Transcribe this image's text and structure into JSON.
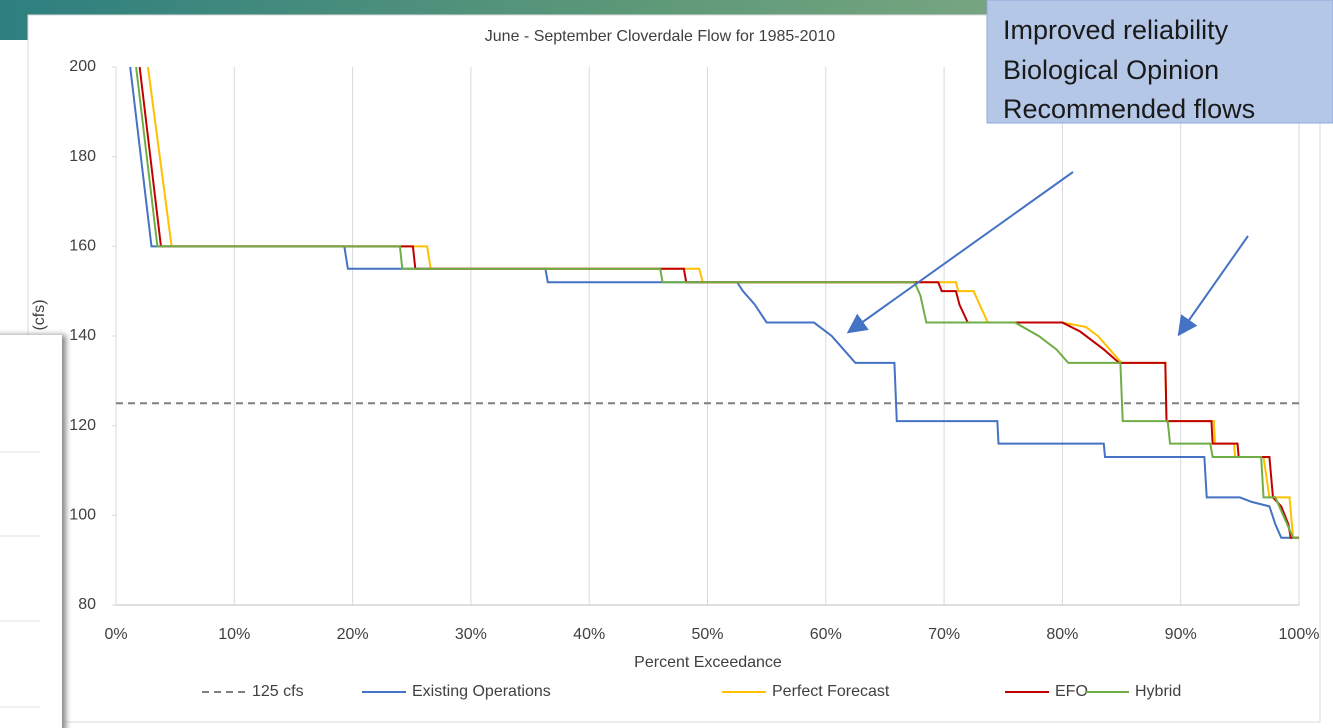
{
  "chart_data": {
    "type": "line",
    "title": "June - September Cloverdale Flow for 1985-2010",
    "y_label": "(cfs)",
    "x_label": "Percent Exceedance",
    "annotations": [
      "Improved reliability",
      "Biological Opinion",
      "Recommended flows"
    ],
    "xlim": [
      0,
      100
    ],
    "xticks": [
      {
        "value": 0,
        "label": "0%"
      },
      {
        "value": 10,
        "label": "10%"
      },
      {
        "value": 20,
        "label": "20%"
      },
      {
        "value": 30,
        "label": "30%"
      },
      {
        "value": 40,
        "label": "40%"
      },
      {
        "value": 50,
        "label": "50%"
      },
      {
        "value": 60,
        "label": "60%"
      },
      {
        "value": 70,
        "label": "70%"
      },
      {
        "value": 80,
        "label": "80%"
      },
      {
        "value": 90,
        "label": "90%"
      },
      {
        "value": 100,
        "label": "100%"
      }
    ],
    "ylim": [
      80,
      200
    ],
    "yticks": [
      80,
      100,
      120,
      140,
      160,
      180,
      200
    ],
    "grid": "x",
    "series": [
      {
        "name": "125 cfs",
        "color": "#7f7f7f",
        "dashed": true,
        "x": [
          0,
          100
        ],
        "values": [
          125,
          125
        ]
      },
      {
        "name": "Existing Operations",
        "color": "#4472c4",
        "dashed": false,
        "x": [
          1.2,
          3.0,
          19.3,
          19.6,
          36.3,
          36.5,
          52.5,
          53,
          54,
          55,
          59,
          60.5,
          61.5,
          62.5,
          65.8,
          66,
          74.5,
          74.6,
          83.5,
          83.6,
          92,
          92.2,
          95,
          96,
          97.5,
          98,
          98.5,
          100
        ],
        "values": [
          200,
          160,
          160,
          155,
          155,
          152,
          152,
          150,
          147,
          143,
          143,
          140,
          137,
          134,
          134,
          121,
          121,
          116,
          116,
          113,
          113,
          104,
          104,
          103,
          102,
          98,
          95,
          95
        ]
      },
      {
        "name": "Perfect Forecast",
        "color": "#ffc000",
        "dashed": false,
        "x": [
          2.7,
          4.7,
          26.3,
          26.6,
          49.3,
          49.6,
          71,
          71.2,
          72.5,
          73,
          73.7,
          80,
          82,
          83,
          84,
          85,
          88.7,
          88.8,
          92.8,
          92.9,
          94.5,
          94.6,
          97,
          97.5,
          99.2,
          99.5,
          100
        ],
        "values": [
          200,
          160,
          160,
          155,
          155,
          152,
          152,
          150,
          150,
          147,
          143,
          143,
          142,
          140,
          137,
          134,
          134,
          121,
          121,
          116,
          116,
          113,
          113,
          104,
          104,
          95,
          95
        ]
      },
      {
        "name": "EFO",
        "color": "#c00000",
        "dashed": false,
        "x": [
          2.0,
          3.8,
          25.1,
          25.3,
          48,
          48.2,
          69.5,
          69.8,
          71,
          71.3,
          72,
          80,
          81.5,
          83.5,
          84.8,
          88.7,
          88.8,
          92.6,
          92.7,
          94.8,
          94.9,
          97.5,
          97.8,
          98.5,
          99.1,
          99.3,
          100
        ],
        "values": [
          200,
          160,
          160,
          155,
          155,
          152,
          152,
          150,
          150,
          147,
          143,
          143,
          141,
          137,
          134,
          134,
          121,
          121,
          116,
          116,
          113,
          113,
          104,
          102,
          98,
          95,
          95
        ]
      },
      {
        "name": "Hybrid",
        "color": "#70ad47",
        "dashed": false,
        "x": [
          1.7,
          3.5,
          24,
          24.2,
          46,
          46.2,
          67.5,
          68,
          68.5,
          76,
          78,
          79.5,
          80.5,
          84.9,
          85.1,
          88.9,
          89.1,
          92.5,
          92.7,
          96.8,
          97,
          98,
          99.5,
          100
        ],
        "values": [
          200,
          160,
          160,
          155,
          155,
          152,
          152,
          149,
          143,
          143,
          140,
          137,
          134,
          134,
          121,
          121,
          116,
          116,
          113,
          113,
          104,
          104,
          95,
          95
        ]
      }
    ]
  }
}
